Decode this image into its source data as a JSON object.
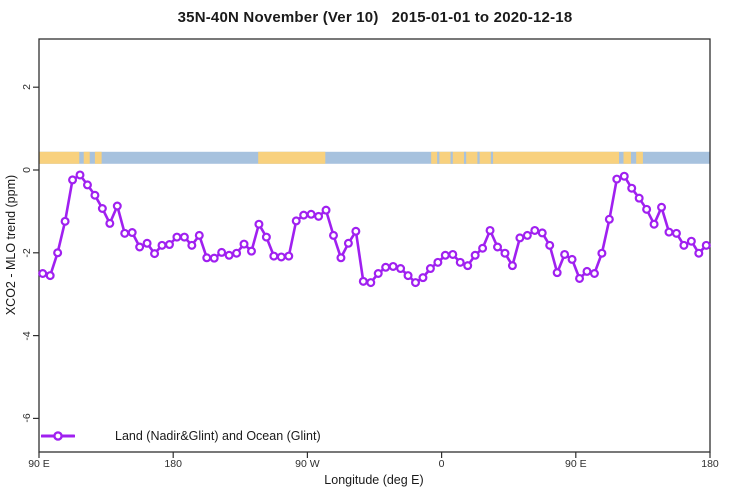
{
  "title": "35N-40N November (Ver 10)   2015-01-01 to 2020-12-18",
  "colors": {
    "line": "#A020F0",
    "marker_fill": "#FFFFFF",
    "axis": "#2F2F2F",
    "band_land": "#F8D17E",
    "band_ocean": "#A7C2DE"
  },
  "chart_data": {
    "type": "line",
    "title": "35N-40N November (Ver 10)   2015-01-01 to 2020-12-18",
    "xlabel": "Longitude (deg E)",
    "ylabel": "XCO2 - MLO trend (ppm)",
    "grid": false,
    "legend": {
      "label": "Land (Nadir&Glint) and Ocean (Glint)",
      "position": "bottom-left"
    },
    "x_axis": {
      "note": "longitude axis wraps eastward from 90E through 180, 90W, 0, 90E to 180",
      "range_deg": [
        90,
        540
      ],
      "ticks": [
        {
          "deg": 90,
          "label": "90 E"
        },
        {
          "deg": 180,
          "label": "180"
        },
        {
          "deg": 270,
          "label": "90 W"
        },
        {
          "deg": 360,
          "label": "0"
        },
        {
          "deg": 450,
          "label": "90 E"
        },
        {
          "deg": 540,
          "label": "180"
        }
      ]
    },
    "y_axis": {
      "range_ppm": [
        -6.8,
        3.2
      ],
      "ticks": [
        {
          "v": 2,
          "label": "2"
        },
        {
          "v": 0,
          "label": "0"
        },
        {
          "v": -2,
          "label": "-2"
        },
        {
          "v": -4,
          "label": "-4"
        },
        {
          "v": -6,
          "label": "-6"
        }
      ]
    },
    "surface_band": {
      "comment": "land/ocean strip just above 0 ppm",
      "y_range_ppm": [
        0.15,
        0.44
      ],
      "base": "ocean",
      "land_segments_deg": [
        [
          90,
          117
        ],
        [
          120,
          124
        ],
        [
          127.5,
          132
        ],
        [
          237,
          282
        ],
        [
          353,
          479
        ],
        [
          482,
          487
        ],
        [
          490.5,
          495
        ]
      ],
      "ocean_specks_deg": [
        [
          357,
          358.5
        ],
        [
          366,
          367.5
        ],
        [
          375,
          376.5
        ],
        [
          384,
          385.5
        ],
        [
          393,
          394.5
        ]
      ]
    },
    "series": [
      {
        "name": "Land (Nadir&Glint) and Ocean (Glint)",
        "color": "#A020F0",
        "marker": "open-circle",
        "x_deg": [
          92.5,
          97.5,
          102.5,
          107.5,
          112.5,
          117.5,
          122.5,
          127.5,
          132.5,
          137.5,
          142.5,
          147.5,
          152.5,
          157.5,
          162.5,
          167.5,
          172.5,
          177.5,
          182.5,
          187.5,
          192.5,
          197.5,
          202.5,
          207.5,
          212.5,
          217.5,
          222.5,
          227.5,
          232.5,
          237.5,
          242.5,
          247.5,
          252.5,
          257.5,
          262.5,
          267.5,
          272.5,
          277.5,
          282.5,
          287.5,
          292.5,
          297.5,
          302.5,
          307.5,
          312.5,
          317.5,
          322.5,
          327.5,
          332.5,
          337.5,
          342.5,
          347.5,
          352.5,
          357.5,
          362.5,
          367.5,
          372.5,
          377.5,
          382.5,
          387.5,
          392.5,
          397.5,
          402.5,
          407.5,
          412.5,
          417.5,
          422.5,
          427.5,
          432.5,
          437.5,
          442.5,
          447.5,
          452.5,
          457.5,
          462.5,
          467.5,
          472.5,
          477.5,
          482.5,
          487.5,
          492.5,
          497.5,
          502.5,
          507.5,
          512.5,
          517.5,
          522.5,
          527.5,
          532.5,
          537.5
        ],
        "y_ppm": [
          -2.5,
          -2.55,
          -2.0,
          -1.24,
          -0.24,
          -0.12,
          -0.36,
          -0.61,
          -0.93,
          -1.29,
          -0.87,
          -1.53,
          -1.51,
          -1.86,
          -1.77,
          -2.02,
          -1.82,
          -1.8,
          -1.62,
          -1.62,
          -1.82,
          -1.58,
          -2.12,
          -2.13,
          -1.99,
          -2.06,
          -2.01,
          -1.79,
          -1.96,
          -1.31,
          -1.62,
          -2.08,
          -2.1,
          -2.08,
          -1.23,
          -1.09,
          -1.07,
          -1.12,
          -0.97,
          -1.58,
          -2.12,
          -1.77,
          -1.48,
          -2.69,
          -2.72,
          -2.5,
          -2.35,
          -2.33,
          -2.38,
          -2.55,
          -2.72,
          -2.6,
          -2.38,
          -2.23,
          -2.06,
          -2.04,
          -2.23,
          -2.31,
          -2.06,
          -1.89,
          -1.46,
          -1.86,
          -2.01,
          -2.31,
          -1.64,
          -1.58,
          -1.46,
          -1.52,
          -1.82,
          -2.48,
          -2.04,
          -2.16,
          -2.62,
          -2.45,
          -2.5,
          -2.01,
          -1.19,
          -0.22,
          -0.15,
          -0.44,
          -0.68,
          -0.95,
          -1.31,
          -0.9,
          -1.5,
          -1.53,
          -1.82,
          -1.72,
          -2.01,
          -1.82
        ]
      }
    ]
  }
}
